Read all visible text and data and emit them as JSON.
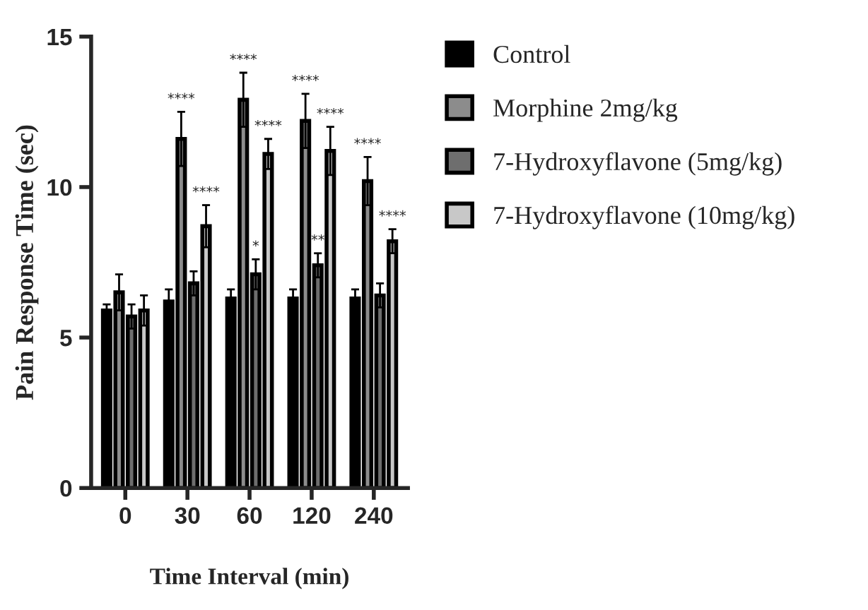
{
  "chart_data": {
    "type": "bar",
    "xlabel": "Time Interval (min)",
    "ylabel": "Pain Response Time (sec)",
    "categories": [
      "0",
      "30",
      "60",
      "120",
      "240"
    ],
    "ylim": [
      0,
      15
    ],
    "yticks": [
      0,
      5,
      10,
      15
    ],
    "grid": false,
    "legend": "right",
    "series": [
      {
        "name": "Control",
        "color": "#000000",
        "values": [
          5.9,
          6.2,
          6.3,
          6.3,
          6.3
        ],
        "errors": [
          0.2,
          0.4,
          0.3,
          0.3,
          0.3
        ],
        "value_labels": [
          null,
          null,
          null,
          null,
          null
        ]
      },
      {
        "name": "Morphine 2mg/kg",
        "color": "#8c8c8c",
        "values": [
          6.5,
          11.6,
          12.9,
          12.2,
          10.2
        ],
        "errors": [
          0.6,
          0.9,
          0.9,
          0.9,
          0.8
        ],
        "value_labels": [
          null,
          "****",
          "****",
          "****",
          "****"
        ]
      },
      {
        "name": "7-Hydroxyflavone (5mg/kg)",
        "color": "#6e6e6e",
        "values": [
          5.7,
          6.8,
          7.1,
          7.4,
          6.4
        ],
        "errors": [
          0.4,
          0.4,
          0.5,
          0.4,
          0.4
        ],
        "value_labels": [
          null,
          null,
          "*",
          "**",
          null
        ]
      },
      {
        "name": "7-Hydroxyflavone (10mg/kg)",
        "color": "#c8c8c8",
        "values": [
          5.9,
          8.7,
          11.1,
          11.2,
          8.2
        ],
        "errors": [
          0.5,
          0.7,
          0.5,
          0.8,
          0.4
        ],
        "value_labels": [
          null,
          "****",
          "****",
          "****",
          "****"
        ]
      }
    ]
  }
}
